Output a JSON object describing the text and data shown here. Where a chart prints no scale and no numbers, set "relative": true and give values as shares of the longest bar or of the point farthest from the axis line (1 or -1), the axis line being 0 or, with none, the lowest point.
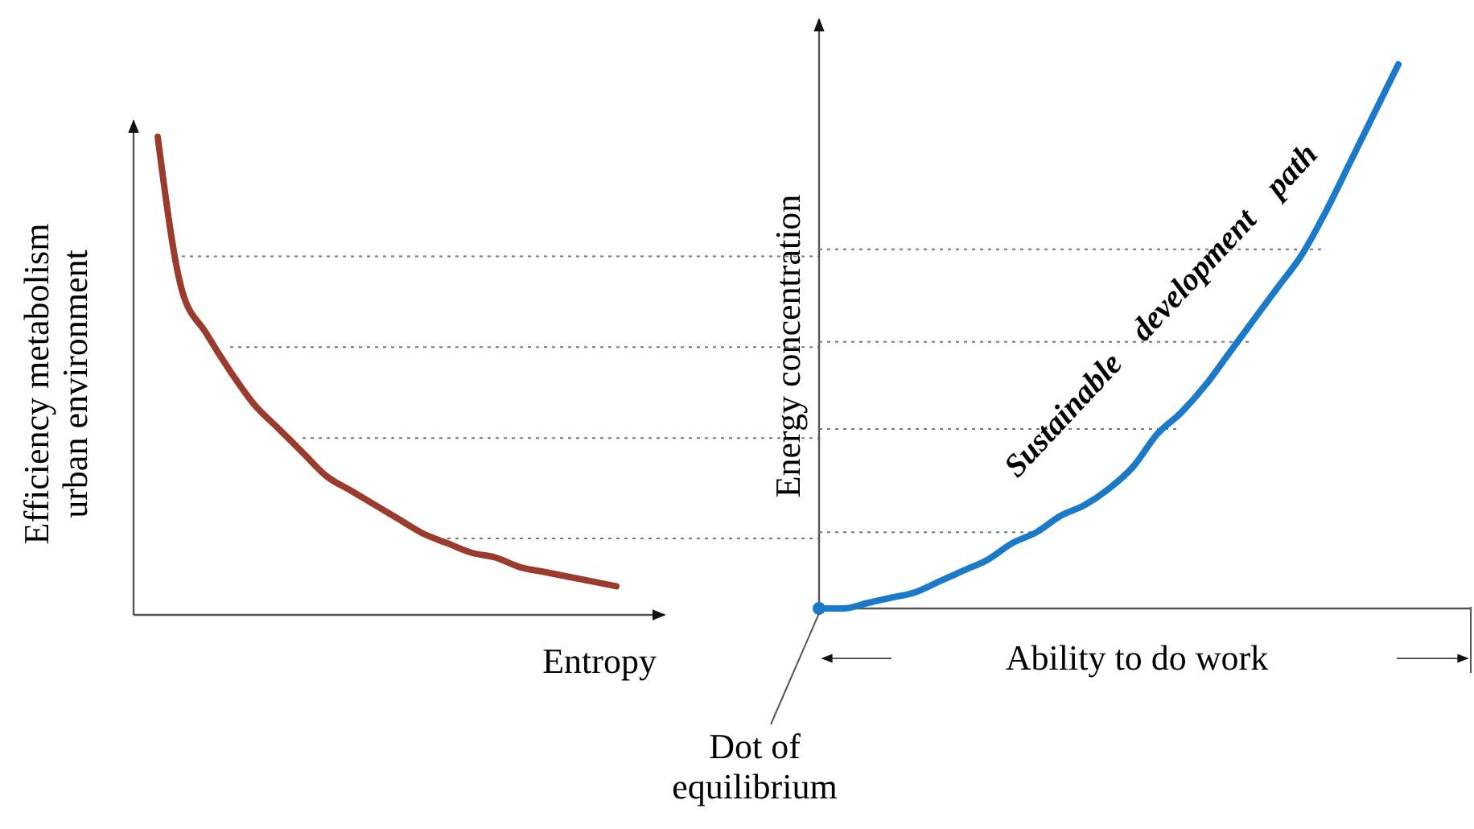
{
  "chart_data": [
    {
      "type": "line",
      "relative": true,
      "xlabel": "Entropy",
      "ylabel": "Efficiency metabolism\nurban environment",
      "categories": [
        null,
        null,
        null,
        null,
        null,
        null,
        null,
        null,
        null,
        null,
        null,
        null,
        null,
        null,
        null,
        null,
        null,
        null,
        null,
        null,
        null,
        null,
        null
      ],
      "series": [
        {
          "color": "#9a3b2c",
          "values": [
            null,
            1,
            0.68,
            0.59,
            0.51,
            0.44,
            0.39,
            0.34,
            0.29,
            0.26,
            0.23,
            0.2,
            0.17,
            0.15,
            0.13,
            0.12,
            0.1,
            0.09,
            0.08,
            0.07,
            0.06,
            null,
            null
          ]
        }
      ],
      "ref_lines": [
        {
          "axis": "y",
          "value": 0.75,
          "line_style": "dotted"
        },
        {
          "axis": "y",
          "value": 0.56,
          "line_style": "dotted"
        },
        {
          "axis": "y",
          "value": 0.37,
          "line_style": "dotted"
        },
        {
          "axis": "y",
          "value": 0.16,
          "line_style": "dotted"
        }
      ]
    },
    {
      "type": "line",
      "relative": true,
      "xlabel": "Ability to do work",
      "ylabel": "Energy concentration",
      "categories": [
        null,
        null,
        null,
        null,
        null,
        null,
        null,
        null,
        null,
        null,
        null,
        null,
        null,
        null,
        null,
        null,
        null,
        null,
        null,
        null,
        null,
        null,
        null,
        null,
        null,
        null,
        null,
        null
      ],
      "series": [
        {
          "color": "#1b79c9",
          "values": [
            0,
            0,
            0.01,
            0.02,
            0.03,
            0.05,
            0.07,
            0.09,
            0.12,
            0.14,
            0.17,
            0.19,
            0.22,
            0.26,
            0.32,
            0.36,
            0.41,
            0.47,
            0.53,
            0.59,
            0.65,
            0.73,
            0.82,
            0.91,
            1,
            null,
            null,
            null
          ]
        }
      ],
      "ref_lines": [
        {
          "axis": "y",
          "value": 0.66,
          "line_style": "dotted"
        },
        {
          "axis": "y",
          "value": 0.49,
          "line_style": "dotted"
        },
        {
          "axis": "y",
          "value": 0.33,
          "line_style": "dotted"
        },
        {
          "axis": "y",
          "value": 0.14,
          "line_style": "dotted"
        }
      ],
      "annotations": [
        "Sustainable development path",
        "Dot of\nequilibrium"
      ]
    }
  ]
}
